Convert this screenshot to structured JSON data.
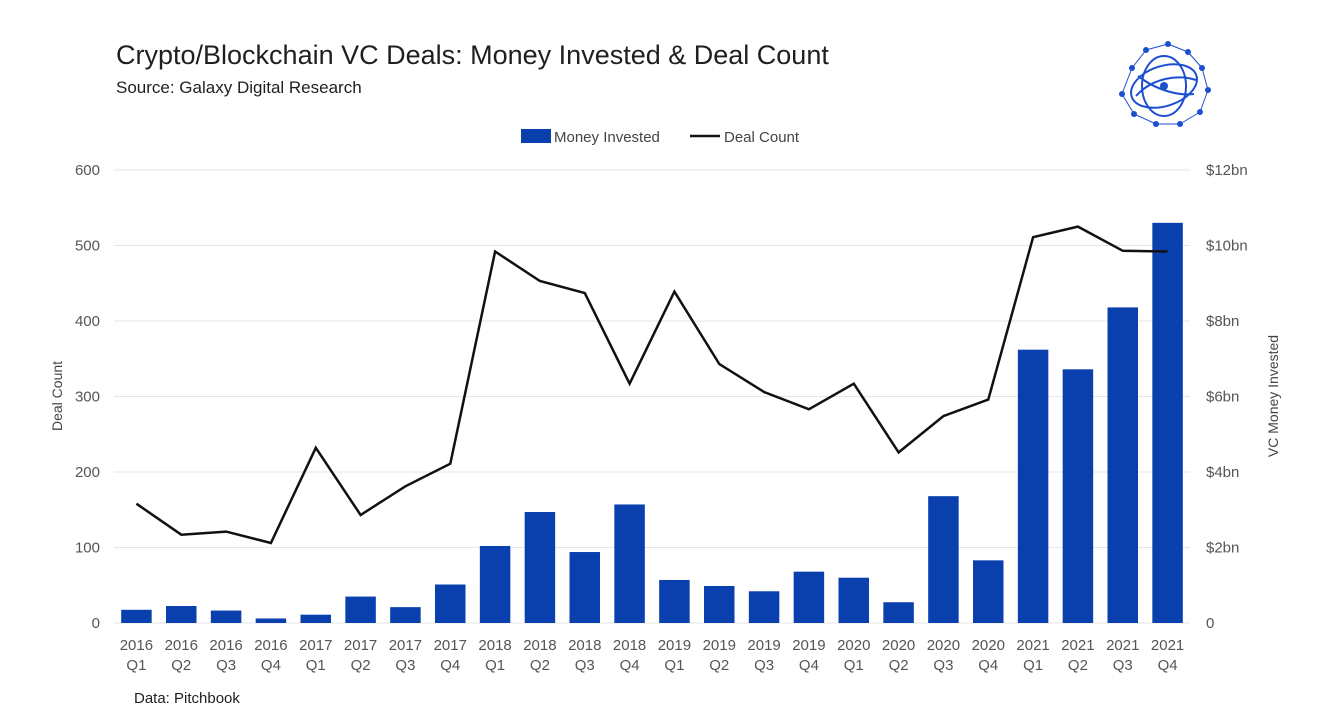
{
  "header": {
    "title": "Crypto/Blockchain VC Deals: Money Invested & Deal Count",
    "subtitle": "Source: Galaxy Digital Research"
  },
  "footer": {
    "source": "Data: Pitchbook"
  },
  "colors": {
    "bar": "#0a3fae",
    "line": "#111111",
    "grid": "#e6e6e6",
    "logo": "#1b4fd0"
  },
  "logo_icon": "galaxy-digital-logo-icon",
  "chart_data": {
    "type": "bar",
    "categories": [
      [
        "2016",
        "Q1"
      ],
      [
        "2016",
        "Q2"
      ],
      [
        "2016",
        "Q3"
      ],
      [
        "2016",
        "Q4"
      ],
      [
        "2017",
        "Q1"
      ],
      [
        "2017",
        "Q2"
      ],
      [
        "2017",
        "Q3"
      ],
      [
        "2017",
        "Q4"
      ],
      [
        "2018",
        "Q1"
      ],
      [
        "2018",
        "Q2"
      ],
      [
        "2018",
        "Q3"
      ],
      [
        "2018",
        "Q4"
      ],
      [
        "2019",
        "Q1"
      ],
      [
        "2019",
        "Q2"
      ],
      [
        "2019",
        "Q3"
      ],
      [
        "2019",
        "Q4"
      ],
      [
        "2020",
        "Q1"
      ],
      [
        "2020",
        "Q2"
      ],
      [
        "2020",
        "Q3"
      ],
      [
        "2020",
        "Q4"
      ],
      [
        "2021",
        "Q1"
      ],
      [
        "2021",
        "Q2"
      ],
      [
        "2021",
        "Q3"
      ],
      [
        "2021",
        "Q4"
      ]
    ],
    "series": [
      {
        "name": "Money Invested",
        "type": "bar",
        "axis": "right",
        "unit": "bn USD",
        "values": [
          0.35,
          0.45,
          0.33,
          0.12,
          0.22,
          0.7,
          0.42,
          1.02,
          2.04,
          2.94,
          1.88,
          3.14,
          1.14,
          0.98,
          0.84,
          1.36,
          1.2,
          0.55,
          3.36,
          1.66,
          7.24,
          6.72,
          8.36,
          10.6
        ]
      },
      {
        "name": "Deal Count",
        "type": "line",
        "axis": "left",
        "values": [
          158,
          117,
          121,
          106,
          232,
          143,
          181,
          211,
          492,
          453,
          437,
          317,
          439,
          343,
          306,
          283,
          317,
          226,
          274,
          296,
          511,
          525,
          493,
          492
        ]
      }
    ],
    "y_left": {
      "label": "Deal Count",
      "ylim": [
        0,
        600
      ],
      "ticks": [
        "0",
        "100",
        "200",
        "300",
        "400",
        "500",
        "600"
      ]
    },
    "y_right": {
      "label": "VC Money Invested",
      "ylim": [
        0,
        12
      ],
      "ticks": [
        "0",
        "$2bn",
        "$4bn",
        "$6bn",
        "$8bn",
        "$10bn",
        "$12bn"
      ]
    },
    "legend": {
      "placement": "top-center"
    },
    "grid": true
  }
}
